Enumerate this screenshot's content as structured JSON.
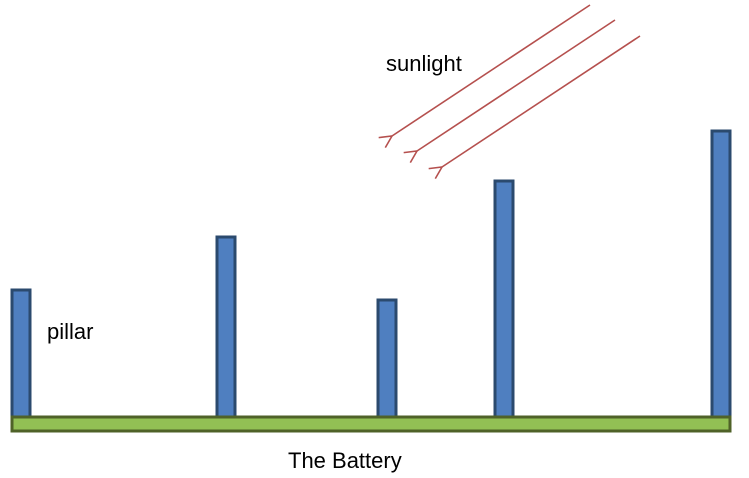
{
  "labels": {
    "sunlight": "sunlight",
    "pillar": "pillar",
    "battery": "The Battery"
  },
  "colors": {
    "pillar_fill": "#4f7fc0",
    "pillar_stroke": "#2b4a6e",
    "battery_fill": "#92c054",
    "battery_stroke": "#4f6228",
    "arrow": "#b5504e"
  },
  "pillars": [
    {
      "name": "pillar-1",
      "height": 1.0
    },
    {
      "name": "pillar-2",
      "height": 1.4
    },
    {
      "name": "pillar-3",
      "height": 0.9
    },
    {
      "name": "pillar-4",
      "height": 1.85
    },
    {
      "name": "pillar-5",
      "height": 2.2
    }
  ],
  "sunlight_arrows": 3
}
